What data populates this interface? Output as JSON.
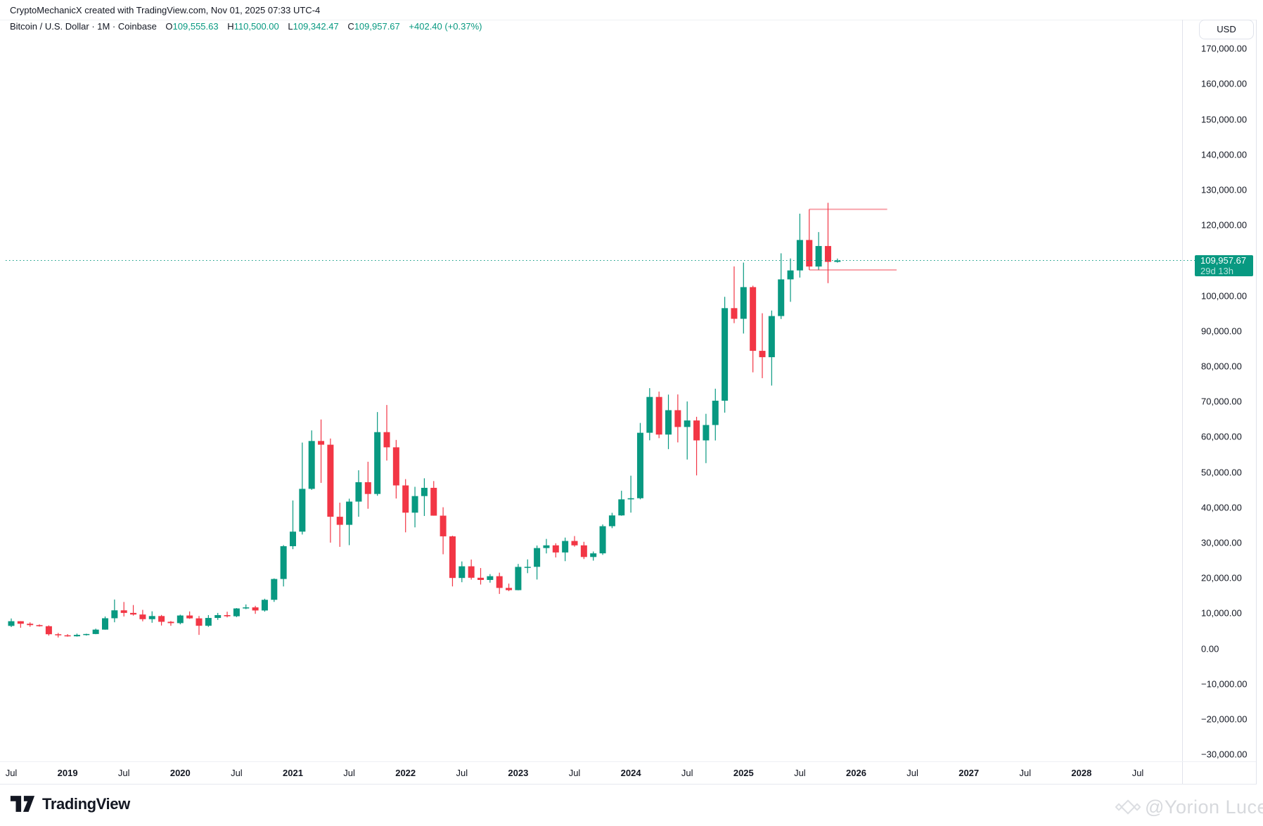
{
  "attribution": "CryptoMechanicX created with TradingView.com, Nov 01, 2025 07:33 UTC-4",
  "legend": {
    "title": "Bitcoin / U.S. Dollar · 1M · Coinbase",
    "o_label": "O",
    "o_value": "109,555.63",
    "h_label": "H",
    "h_value": "110,500.00",
    "l_label": "L",
    "l_value": "109,342.47",
    "c_label": "C",
    "c_value": "109,957.67",
    "change": "+402.40 (+0.37%)"
  },
  "price_axis": {
    "currency": "USD",
    "ticks": [
      {
        "price": 170000,
        "label": "170,000.00"
      },
      {
        "price": 160000,
        "label": "160,000.00"
      },
      {
        "price": 150000,
        "label": "150,000.00"
      },
      {
        "price": 140000,
        "label": "140,000.00"
      },
      {
        "price": 130000,
        "label": "130,000.00"
      },
      {
        "price": 120000,
        "label": "120,000.00"
      },
      {
        "price": 100000,
        "label": "100,000.00"
      },
      {
        "price": 90000,
        "label": "90,000.00"
      },
      {
        "price": 80000,
        "label": "80,000.00"
      },
      {
        "price": 70000,
        "label": "70,000.00"
      },
      {
        "price": 60000,
        "label": "60,000.00"
      },
      {
        "price": 50000,
        "label": "50,000.00"
      },
      {
        "price": 40000,
        "label": "40,000.00"
      },
      {
        "price": 30000,
        "label": "30,000.00"
      },
      {
        "price": 20000,
        "label": "20,000.00"
      },
      {
        "price": 10000,
        "label": "10,000.00"
      },
      {
        "price": 0,
        "label": "0.00"
      },
      {
        "price": -10000,
        "label": "−10,000.00"
      },
      {
        "price": -20000,
        "label": "−20,000.00"
      },
      {
        "price": -30000,
        "label": "−30,000.00"
      }
    ]
  },
  "price_badge": {
    "price": "109,957.67",
    "countdown": "29d 13h"
  },
  "time_axis": {
    "ticks": [
      {
        "i": 0,
        "label": "Jul",
        "bold": false
      },
      {
        "i": 6,
        "label": "2019",
        "bold": true
      },
      {
        "i": 12,
        "label": "Jul",
        "bold": false
      },
      {
        "i": 18,
        "label": "2020",
        "bold": true
      },
      {
        "i": 24,
        "label": "Jul",
        "bold": false
      },
      {
        "i": 30,
        "label": "2021",
        "bold": true
      },
      {
        "i": 36,
        "label": "Jul",
        "bold": false
      },
      {
        "i": 42,
        "label": "2022",
        "bold": true
      },
      {
        "i": 48,
        "label": "Jul",
        "bold": false
      },
      {
        "i": 54,
        "label": "2023",
        "bold": true
      },
      {
        "i": 60,
        "label": "Jul",
        "bold": false
      },
      {
        "i": 66,
        "label": "2024",
        "bold": true
      },
      {
        "i": 72,
        "label": "Jul",
        "bold": false
      },
      {
        "i": 78,
        "label": "2025",
        "bold": true
      },
      {
        "i": 84,
        "label": "Jul",
        "bold": false
      },
      {
        "i": 90,
        "label": "2026",
        "bold": true
      },
      {
        "i": 96,
        "label": "Jul",
        "bold": false
      },
      {
        "i": 102,
        "label": "2027",
        "bold": true
      },
      {
        "i": 108,
        "label": "Jul",
        "bold": false
      },
      {
        "i": 114,
        "label": "2028",
        "bold": true
      },
      {
        "i": 120,
        "label": "Jul",
        "bold": false
      }
    ]
  },
  "footer": {
    "brand": "TradingView"
  },
  "watermark": {
    "text": "@Yorion Luces"
  },
  "colors": {
    "up": "#089981",
    "down": "#F23645",
    "annotation": "rgba(242,54,69,0.45)",
    "current_price_line": "#089981",
    "text": "#131722",
    "border": "#e1e3eb"
  },
  "chart_data": {
    "type": "candlestick",
    "symbol": "Bitcoin / U.S. Dollar",
    "exchange": "Coinbase",
    "interval": "1M",
    "ylim": [
      -32000,
      178000
    ],
    "x_axis_start": "2018-07",
    "x_axis_end": "2028-12",
    "grid": false,
    "current_price": 109957.67,
    "columns": [
      "month",
      "open",
      "high",
      "low",
      "close"
    ],
    "candles": [
      [
        "2018-07",
        6404,
        8507,
        6070,
        7735
      ],
      [
        "2018-08",
        7735,
        7760,
        5880,
        7011
      ],
      [
        "2018-09",
        7011,
        7412,
        6160,
        6626
      ],
      [
        "2018-10",
        6626,
        6830,
        6200,
        6317
      ],
      [
        "2018-11",
        6317,
        6552,
        3652,
        4040
      ],
      [
        "2018-12",
        4040,
        4412,
        3122,
        3742
      ],
      [
        "2019-01",
        3742,
        4069,
        3350,
        3457
      ],
      [
        "2019-02",
        3457,
        4219,
        3373,
        3854
      ],
      [
        "2019-03",
        3854,
        4188,
        3666,
        4105
      ],
      [
        "2019-04",
        4105,
        5627,
        4052,
        5350
      ],
      [
        "2019-05",
        5350,
        9074,
        5330,
        8574
      ],
      [
        "2019-06",
        8574,
        13880,
        7432,
        10817
      ],
      [
        "2019-07",
        10817,
        13184,
        9071,
        10085
      ],
      [
        "2019-08",
        10085,
        12316,
        9321,
        9630
      ],
      [
        "2019-09",
        9630,
        10949,
        7700,
        8310
      ],
      [
        "2019-10",
        8310,
        10540,
        7293,
        9199
      ],
      [
        "2019-11",
        9199,
        9505,
        6515,
        7569
      ],
      [
        "2019-12",
        7569,
        7780,
        6435,
        7193
      ],
      [
        "2020-01",
        7193,
        9578,
        6850,
        9350
      ],
      [
        "2020-02",
        9350,
        10500,
        8400,
        8543
      ],
      [
        "2020-03",
        8543,
        9219,
        3858,
        6438
      ],
      [
        "2020-04",
        6438,
        9470,
        6140,
        8658
      ],
      [
        "2020-05",
        8658,
        10080,
        8101,
        9461
      ],
      [
        "2020-06",
        9461,
        10429,
        8810,
        9137
      ],
      [
        "2020-07",
        9137,
        11450,
        8900,
        11351
      ],
      [
        "2020-08",
        11351,
        12486,
        11150,
        11655
      ],
      [
        "2020-09",
        11655,
        12090,
        9825,
        10776
      ],
      [
        "2020-10",
        10776,
        14100,
        10437,
        13797
      ],
      [
        "2020-11",
        13797,
        19863,
        13200,
        19698
      ],
      [
        "2020-12",
        19698,
        29300,
        17580,
        28990
      ],
      [
        "2021-01",
        28990,
        41950,
        28150,
        33114
      ],
      [
        "2021-02",
        33114,
        58352,
        32300,
        45240
      ],
      [
        "2021-03",
        45240,
        61800,
        44950,
        58800
      ],
      [
        "2021-04",
        58800,
        64895,
        46930,
        57750
      ],
      [
        "2021-05",
        57750,
        59500,
        30000,
        37332
      ],
      [
        "2021-06",
        37332,
        41322,
        28800,
        35045
      ],
      [
        "2021-07",
        35045,
        42448,
        29278,
        41626
      ],
      [
        "2021-08",
        41626,
        50500,
        37332,
        47130
      ],
      [
        "2021-09",
        47130,
        52920,
        39600,
        43790
      ],
      [
        "2021-10",
        43790,
        66999,
        43283,
        61310
      ],
      [
        "2021-11",
        61310,
        69000,
        53256,
        57005
      ],
      [
        "2021-12",
        57005,
        59100,
        42500,
        46211
      ],
      [
        "2022-01",
        46211,
        47990,
        32917,
        38491
      ],
      [
        "2022-02",
        38491,
        45821,
        34322,
        43192
      ],
      [
        "2022-03",
        43192,
        48234,
        37555,
        45528
      ],
      [
        "2022-04",
        45528,
        47444,
        37630,
        37644
      ],
      [
        "2022-05",
        37644,
        40023,
        26700,
        31784
      ],
      [
        "2022-06",
        31784,
        31957,
        17593,
        19985
      ],
      [
        "2022-07",
        19985,
        24668,
        18781,
        23293
      ],
      [
        "2022-08",
        23293,
        25211,
        19526,
        20048
      ],
      [
        "2022-09",
        20048,
        22799,
        18125,
        19425
      ],
      [
        "2022-10",
        19425,
        21085,
        18650,
        20490
      ],
      [
        "2022-11",
        20490,
        21480,
        15460,
        17163
      ],
      [
        "2022-12",
        17163,
        18387,
        16256,
        16537
      ],
      [
        "2023-01",
        16537,
        23960,
        16488,
        23124
      ],
      [
        "2023-02",
        23124,
        25250,
        21351,
        23141
      ],
      [
        "2023-03",
        23141,
        29184,
        19549,
        28465
      ],
      [
        "2023-04",
        28465,
        31050,
        26942,
        29233
      ],
      [
        "2023-05",
        29233,
        29820,
        25802,
        27216
      ],
      [
        "2023-06",
        27216,
        31431,
        24750,
        30471
      ],
      [
        "2023-07",
        30471,
        31862,
        28855,
        29230
      ],
      [
        "2023-08",
        29230,
        30230,
        25350,
        25932
      ],
      [
        "2023-09",
        25932,
        27483,
        24900,
        26962
      ],
      [
        "2023-10",
        26962,
        35150,
        26533,
        34656
      ],
      [
        "2023-11",
        34656,
        38450,
        34100,
        37710
      ],
      [
        "2023-12",
        37710,
        44700,
        37615,
        42265
      ],
      [
        "2024-01",
        42265,
        48969,
        38501,
        42580
      ],
      [
        "2024-02",
        42580,
        63913,
        42265,
        61130
      ],
      [
        "2024-03",
        61130,
        73777,
        59005,
        71280
      ],
      [
        "2024-04",
        71280,
        72797,
        59600,
        60622
      ],
      [
        "2024-05",
        60622,
        71946,
        56500,
        67530
      ],
      [
        "2024-06",
        67530,
        71997,
        58402,
        62770
      ],
      [
        "2024-07",
        62770,
        70000,
        53550,
        64619
      ],
      [
        "2024-08",
        64619,
        65659,
        49050,
        58969
      ],
      [
        "2024-09",
        58969,
        66500,
        52530,
        63330
      ],
      [
        "2024-10",
        63330,
        73620,
        58946,
        70215
      ],
      [
        "2024-11",
        70215,
        99655,
        66835,
        96449
      ],
      [
        "2024-12",
        96449,
        108268,
        92190,
        93429
      ],
      [
        "2025-01",
        93429,
        109358,
        89256,
        102405
      ],
      [
        "2025-02",
        102405,
        102800,
        78258,
        84349
      ],
      [
        "2025-03",
        84349,
        95000,
        76606,
        82548
      ],
      [
        "2025-04",
        82548,
        95768,
        74508,
        94207
      ],
      [
        "2025-05",
        94207,
        111980,
        93366,
        104598
      ],
      [
        "2025-06",
        104598,
        110530,
        98240,
        107135
      ],
      [
        "2025-07",
        107135,
        123218,
        105111,
        115758
      ],
      [
        "2025-08",
        115758,
        124457,
        107270,
        108236
      ],
      [
        "2025-09",
        108236,
        118000,
        107255,
        114056
      ],
      [
        "2025-10",
        114056,
        126296,
        103530,
        109555.63
      ],
      [
        "2025-11",
        109555.63,
        110500,
        109342.47,
        109957.67
      ]
    ],
    "annotations": [
      {
        "type": "hline_ray",
        "price": 124457,
        "from_index": 85,
        "to_index": 93.3,
        "color": "rgba(242,54,69,0.45)"
      },
      {
        "type": "hline_ray",
        "price": 107270,
        "from_index": 85,
        "to_index": 94.3,
        "color": "rgba(242,54,69,0.45)"
      }
    ]
  }
}
